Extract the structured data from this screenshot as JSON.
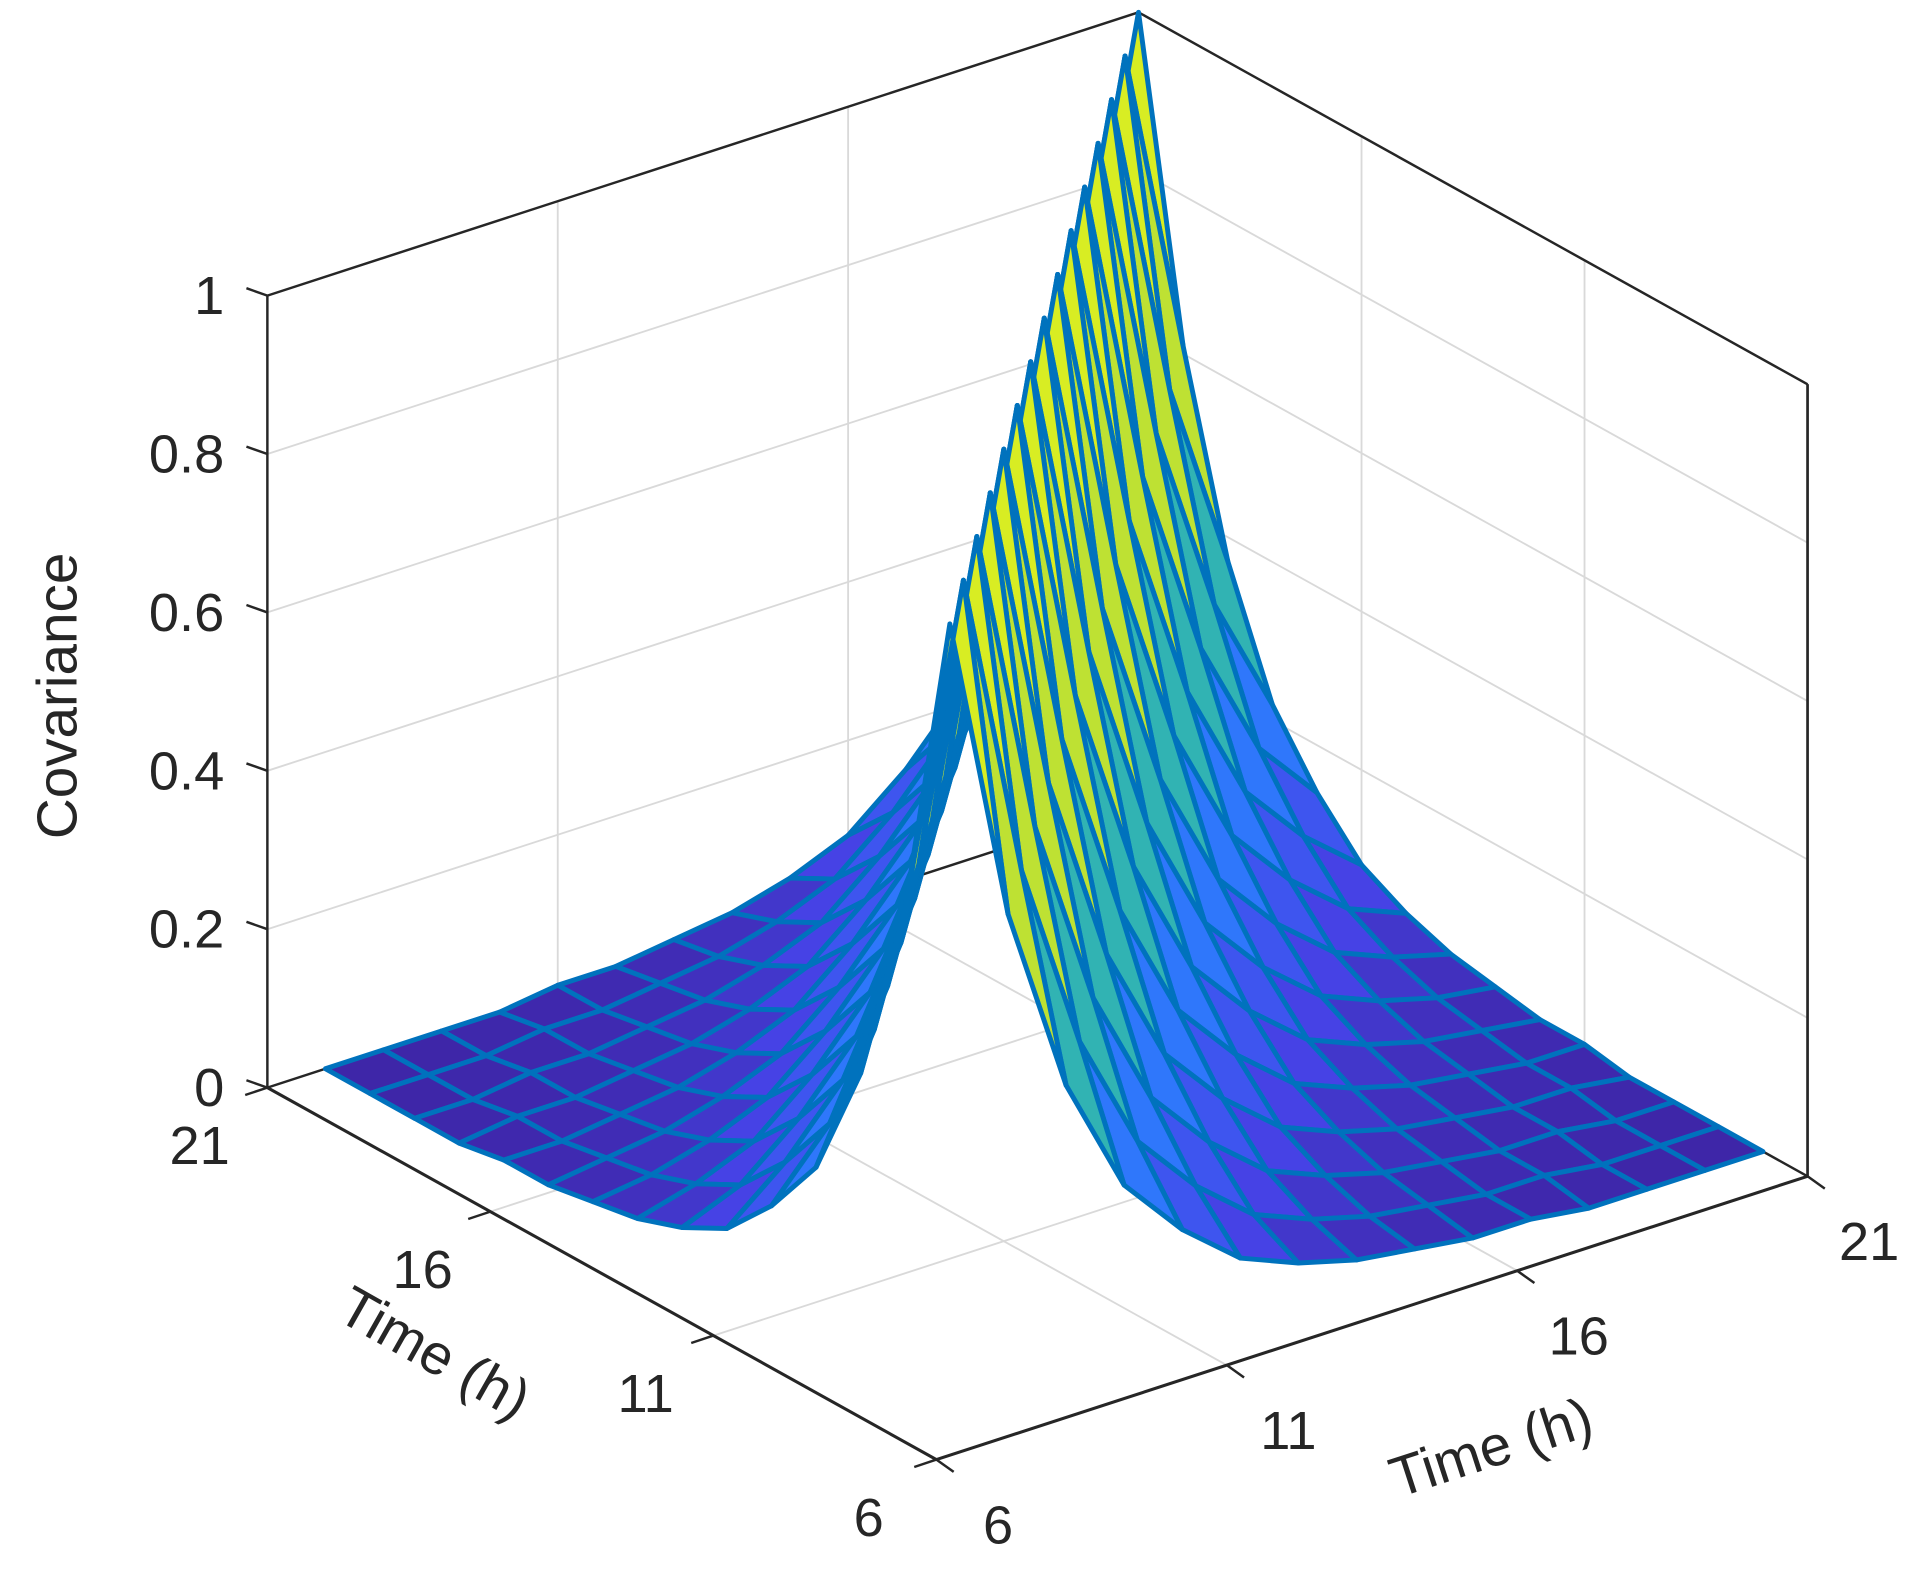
{
  "chart_data": {
    "type": "surface",
    "title": "",
    "xlabel": "Time (h)",
    "ylabel": "Time (h)",
    "zlabel": "Covariance",
    "xlim": [
      6,
      21
    ],
    "ylim": [
      6,
      21
    ],
    "zlim": [
      0,
      1
    ],
    "xticks": [
      "6",
      "11",
      "16",
      "21"
    ],
    "yticks": [
      "6",
      "11",
      "16",
      "21"
    ],
    "zticks": [
      "0",
      "0.2",
      "0.4",
      "0.6",
      "0.8",
      "1"
    ],
    "grid": true,
    "colormap": "parula",
    "edge_color": "#0072BD",
    "x": [
      7,
      8,
      9,
      10,
      11,
      12,
      13,
      14,
      15,
      16,
      17,
      18,
      19,
      20,
      21
    ],
    "y": [
      7,
      8,
      9,
      10,
      11,
      12,
      13,
      14,
      15,
      16,
      17,
      18,
      19,
      20,
      21
    ],
    "z": [
      [
        1,
        0.61,
        0.37,
        0.22,
        0.14,
        0.08,
        0.05,
        0.03,
        0.02,
        0.01,
        0.01,
        0,
        0,
        0,
        0
      ],
      [
        0.61,
        1,
        0.61,
        0.37,
        0.22,
        0.14,
        0.08,
        0.05,
        0.03,
        0.02,
        0.01,
        0.01,
        0,
        0,
        0
      ],
      [
        0.37,
        0.61,
        1,
        0.61,
        0.37,
        0.22,
        0.14,
        0.08,
        0.05,
        0.03,
        0.02,
        0.01,
        0.01,
        0,
        0
      ],
      [
        0.22,
        0.37,
        0.61,
        1,
        0.61,
        0.37,
        0.22,
        0.14,
        0.08,
        0.05,
        0.03,
        0.02,
        0.01,
        0.01,
        0
      ],
      [
        0.14,
        0.22,
        0.37,
        0.61,
        1,
        0.61,
        0.37,
        0.22,
        0.14,
        0.08,
        0.05,
        0.03,
        0.02,
        0.01,
        0.01
      ],
      [
        0.08,
        0.14,
        0.22,
        0.37,
        0.61,
        1,
        0.61,
        0.37,
        0.22,
        0.14,
        0.08,
        0.05,
        0.03,
        0.02,
        0.01
      ],
      [
        0.05,
        0.08,
        0.14,
        0.22,
        0.37,
        0.61,
        1,
        0.61,
        0.37,
        0.22,
        0.14,
        0.08,
        0.05,
        0.03,
        0.02
      ],
      [
        0.03,
        0.05,
        0.08,
        0.14,
        0.22,
        0.37,
        0.61,
        1,
        0.61,
        0.37,
        0.22,
        0.14,
        0.08,
        0.05,
        0.03
      ],
      [
        0.02,
        0.03,
        0.05,
        0.08,
        0.14,
        0.22,
        0.37,
        0.61,
        1,
        0.61,
        0.37,
        0.22,
        0.14,
        0.08,
        0.05
      ],
      [
        0.01,
        0.02,
        0.03,
        0.05,
        0.08,
        0.14,
        0.22,
        0.37,
        0.61,
        1,
        0.61,
        0.37,
        0.22,
        0.14,
        0.08
      ],
      [
        0.01,
        0.01,
        0.02,
        0.03,
        0.05,
        0.08,
        0.14,
        0.22,
        0.37,
        0.61,
        1,
        0.61,
        0.37,
        0.22,
        0.14
      ],
      [
        0,
        0.01,
        0.01,
        0.02,
        0.03,
        0.05,
        0.08,
        0.14,
        0.22,
        0.37,
        0.61,
        1,
        0.61,
        0.37,
        0.22
      ],
      [
        0,
        0,
        0.01,
        0.01,
        0.02,
        0.03,
        0.05,
        0.08,
        0.14,
        0.22,
        0.37,
        0.61,
        1,
        0.61,
        0.37
      ],
      [
        0,
        0,
        0,
        0.01,
        0.01,
        0.02,
        0.03,
        0.05,
        0.08,
        0.14,
        0.22,
        0.37,
        0.61,
        1,
        0.61
      ],
      [
        0,
        0,
        0,
        0,
        0.01,
        0.01,
        0.02,
        0.03,
        0.05,
        0.08,
        0.14,
        0.22,
        0.37,
        0.61,
        1
      ]
    ]
  }
}
